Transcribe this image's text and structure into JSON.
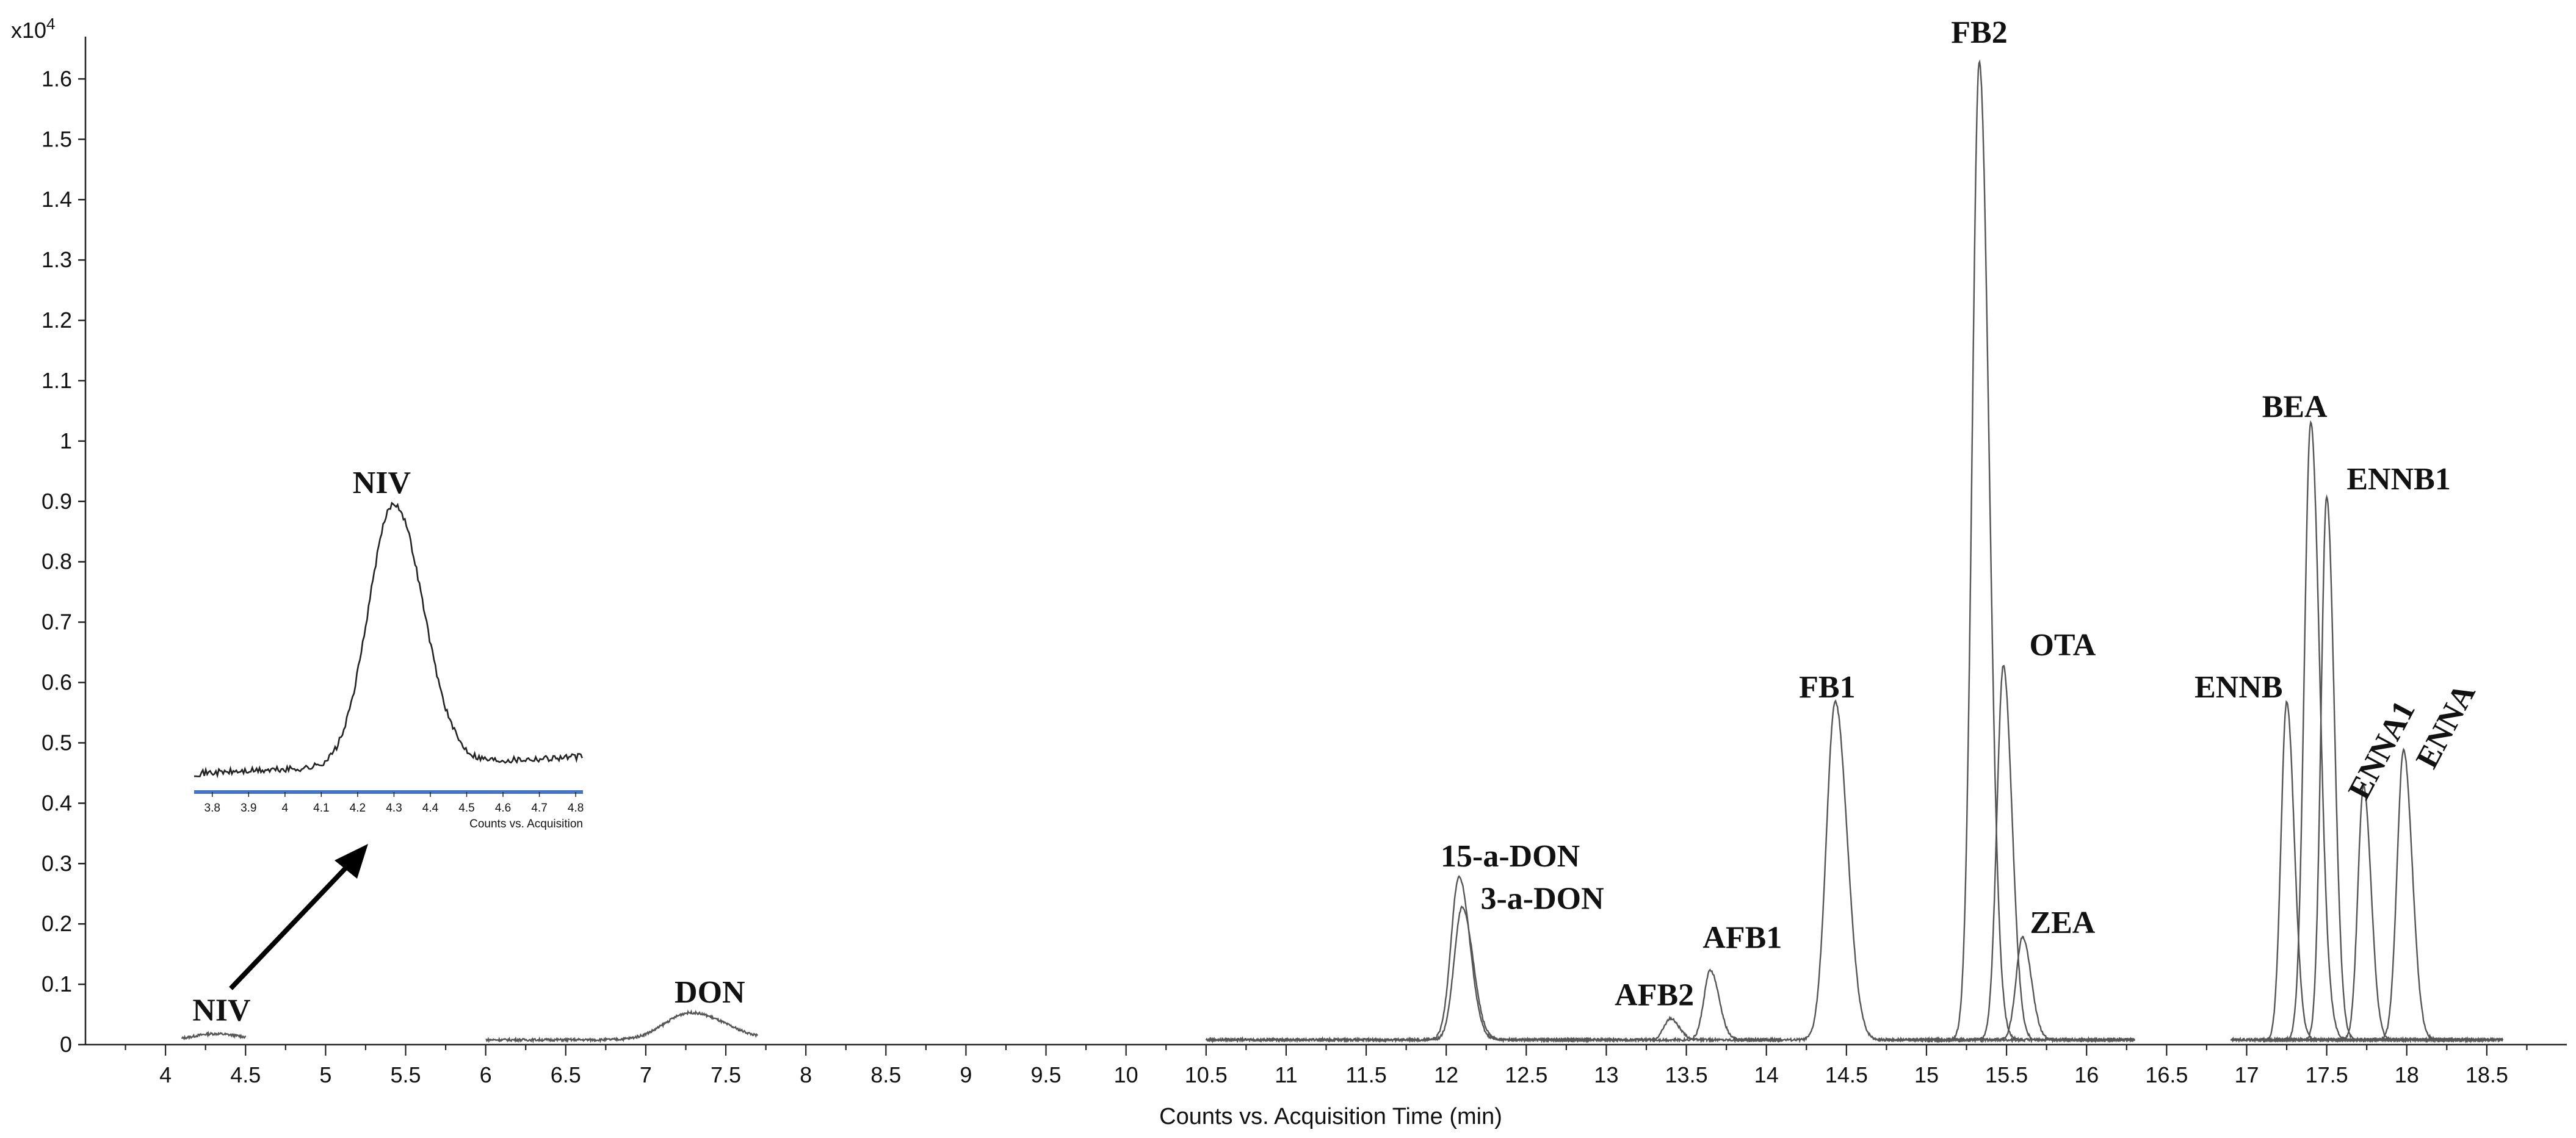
{
  "chart_data": {
    "type": "line",
    "title": "",
    "xlabel": "Counts vs. Acquisition Time (min)",
    "y_multiplier_label": "x10",
    "y_multiplier_exponent": "4",
    "xlim": [
      3.5,
      19.0
    ],
    "ylim": [
      0,
      1.66
    ],
    "x_ticks": [
      4,
      4.5,
      5,
      5.5,
      6,
      6.5,
      7,
      7.5,
      8,
      8.5,
      9,
      9.5,
      10,
      10.5,
      11,
      11.5,
      12,
      12.5,
      13,
      13.5,
      14,
      14.5,
      15,
      15.5,
      16,
      16.5,
      17,
      17.5,
      18,
      18.5
    ],
    "y_ticks": [
      0,
      0.1,
      0.2,
      0.3,
      0.4,
      0.5,
      0.6,
      0.7,
      0.8,
      0.9,
      1,
      1.1,
      1.2,
      1.3,
      1.4,
      1.5,
      1.6
    ],
    "grid": false,
    "baseline": 0.008,
    "series": [
      {
        "name": "NIV",
        "segment": [
          4.1,
          4.5
        ],
        "peaks": [
          {
            "t": 4.3,
            "h": 0.01,
            "w": 0.12
          }
        ]
      },
      {
        "name": "DON",
        "segment": [
          6.0,
          7.7
        ],
        "peaks": [
          {
            "t": 7.28,
            "h": 0.045,
            "w": 0.16
          }
        ]
      },
      {
        "name": "15-a-DON",
        "segment": [
          10.5,
          12.9
        ],
        "peaks": [
          {
            "t": 12.08,
            "h": 0.27,
            "w": 0.05
          }
        ]
      },
      {
        "name": "3-a-DON",
        "segment": [
          10.5,
          12.9
        ],
        "peaks": [
          {
            "t": 12.1,
            "h": 0.22,
            "w": 0.05
          }
        ]
      },
      {
        "name": "AFB2",
        "segment": [
          12.6,
          14.1
        ],
        "peaks": [
          {
            "t": 13.4,
            "h": 0.035,
            "w": 0.04
          }
        ]
      },
      {
        "name": "AFB1",
        "segment": [
          12.6,
          14.1
        ],
        "peaks": [
          {
            "t": 13.65,
            "h": 0.115,
            "w": 0.04
          }
        ]
      },
      {
        "name": "FB1",
        "segment": [
          13.8,
          15.6
        ],
        "peaks": [
          {
            "t": 14.43,
            "h": 0.56,
            "w": 0.055
          }
        ]
      },
      {
        "name": "FB2",
        "segment": [
          14.7,
          16.3
        ],
        "peaks": [
          {
            "t": 15.33,
            "h": 1.62,
            "w": 0.045
          }
        ]
      },
      {
        "name": "OTA",
        "segment": [
          14.9,
          16.3
        ],
        "peaks": [
          {
            "t": 15.48,
            "h": 0.62,
            "w": 0.04
          }
        ]
      },
      {
        "name": "ZEA",
        "segment": [
          14.9,
          16.3
        ],
        "peaks": [
          {
            "t": 15.6,
            "h": 0.17,
            "w": 0.04
          }
        ]
      },
      {
        "name": "ENNB",
        "segment": [
          16.9,
          18.3
        ],
        "peaks": [
          {
            "t": 17.25,
            "h": 0.56,
            "w": 0.035
          }
        ]
      },
      {
        "name": "BEA",
        "segment": [
          16.9,
          18.6
        ],
        "peaks": [
          {
            "t": 17.4,
            "h": 1.02,
            "w": 0.04
          },
          {
            "t": 17.48,
            "h": 0.025,
            "w": 0.04
          }
        ]
      },
      {
        "name": "ENNB1",
        "segment": [
          17.1,
          18.5
        ],
        "peaks": [
          {
            "t": 17.5,
            "h": 0.9,
            "w": 0.035
          }
        ]
      },
      {
        "name": "ENNA1",
        "segment": [
          17.1,
          18.6
        ],
        "peaks": [
          {
            "t": 17.73,
            "h": 0.42,
            "w": 0.035
          }
        ]
      },
      {
        "name": "ENNA",
        "segment": [
          17.1,
          18.6
        ],
        "peaks": [
          {
            "t": 17.98,
            "h": 0.48,
            "w": 0.04
          }
        ]
      }
    ],
    "annotations": [
      {
        "text": "NIV",
        "x": 4.35,
        "y": 0.04,
        "rotate": 0
      },
      {
        "text": "DON",
        "x": 7.4,
        "y": 0.07,
        "rotate": 0
      },
      {
        "text": "15-a-DON",
        "x": 12.4,
        "y": 0.295,
        "rotate": 0
      },
      {
        "text": "3-a-DON",
        "x": 12.6,
        "y": 0.225,
        "rotate": 0
      },
      {
        "text": "AFB2",
        "x": 13.3,
        "y": 0.065,
        "rotate": 0
      },
      {
        "text": "AFB1",
        "x": 13.85,
        "y": 0.16,
        "rotate": 0
      },
      {
        "text": "FB1",
        "x": 14.38,
        "y": 0.575,
        "rotate": 0
      },
      {
        "text": "FB2",
        "x": 15.33,
        "y": 1.66,
        "rotate": 0
      },
      {
        "text": "OTA",
        "x": 15.85,
        "y": 0.645,
        "rotate": 0
      },
      {
        "text": "ZEA",
        "x": 15.85,
        "y": 0.185,
        "rotate": 0
      },
      {
        "text": "ENNB",
        "x": 16.95,
        "y": 0.575,
        "rotate": 0
      },
      {
        "text": "BEA",
        "x": 17.3,
        "y": 1.04,
        "rotate": 0
      },
      {
        "text": "ENNB1",
        "x": 17.95,
        "y": 0.92,
        "rotate": 0
      },
      {
        "text": "ENNA1",
        "x": 17.9,
        "y": 0.48,
        "rotate": -62
      },
      {
        "text": "ENNA",
        "x": 18.3,
        "y": 0.52,
        "rotate": -62
      }
    ],
    "inset": {
      "label": "NIV",
      "xlabel": "Counts vs. Acquisition",
      "xlim": [
        3.75,
        4.82
      ],
      "x_ticks": [
        3.8,
        3.9,
        4,
        4.1,
        4.2,
        4.3,
        4.4,
        4.5,
        4.6,
        4.7,
        4.8
      ],
      "peak": {
        "t": 4.3,
        "h": 1.0,
        "w": 0.07
      },
      "line_color": "#4472c4"
    }
  }
}
